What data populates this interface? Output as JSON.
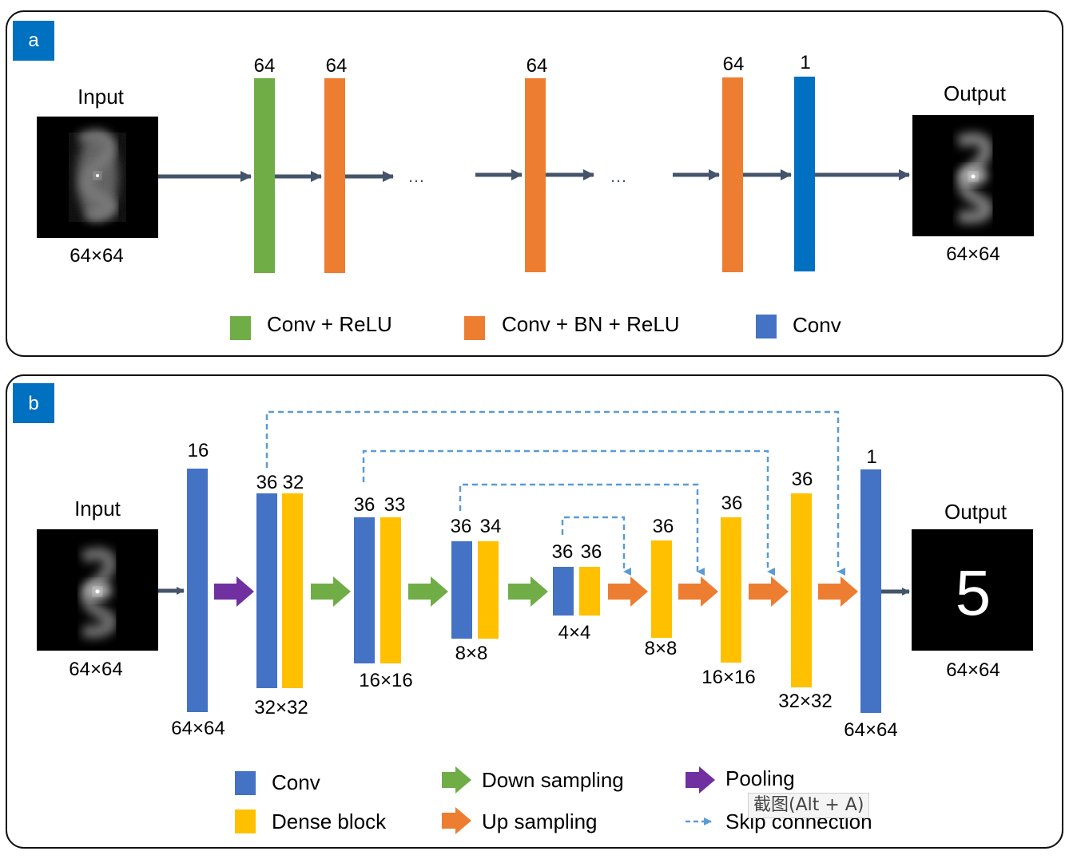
{
  "panel_a": {
    "badge": "a",
    "input_label": "Input",
    "input_size": "64×64",
    "output_label": "Output",
    "output_size": "64×64",
    "layers": [
      {
        "channels": "64",
        "kind": "conv_relu"
      },
      {
        "channels": "64",
        "kind": "conv_bn_relu"
      },
      {
        "channels": "64",
        "kind": "conv_bn_relu"
      },
      {
        "channels": "64",
        "kind": "conv_bn_relu"
      },
      {
        "channels": "1",
        "kind": "conv"
      }
    ],
    "ellipsis": "…",
    "legend": [
      {
        "label": "Conv + ReLU",
        "color": "#70AD47"
      },
      {
        "label": "Conv + BN + ReLU",
        "color": "#ED7D31"
      },
      {
        "label": "Conv",
        "color": "#4472C4"
      }
    ]
  },
  "panel_b": {
    "badge": "b",
    "input_label": "Input",
    "input_size": "64×64",
    "output_label": "Output",
    "output_size": "64×64",
    "output_digit": "5",
    "first_conv": {
      "channels": "16",
      "size": "64×64"
    },
    "encoder": [
      {
        "conv": "36",
        "dense": "32",
        "size": "32×32"
      },
      {
        "conv": "36",
        "dense": "33",
        "size": "16×16"
      },
      {
        "conv": "36",
        "dense": "34",
        "size": "8×8"
      },
      {
        "conv": "36",
        "dense": "36",
        "size": "4×4"
      }
    ],
    "decoder": [
      {
        "channels": "36",
        "size": "8×8"
      },
      {
        "channels": "36",
        "size": "16×16"
      },
      {
        "channels": "36",
        "size": "32×32"
      }
    ],
    "final_conv": {
      "channels": "1",
      "size": "64×64"
    },
    "legend": {
      "conv": "Conv",
      "dense": "Dense block",
      "down": "Down sampling",
      "up": "Up sampling",
      "pool": "Pooling",
      "skip": "Skip connection"
    }
  },
  "colors": {
    "green": "#70AD47",
    "orange": "#ED7D31",
    "blue_a": "#0070C0",
    "blue_b": "#4472C4",
    "yellow": "#FFC000",
    "purple": "#7030A0",
    "arrow": "#44546A",
    "skip": "#5B9BD5",
    "badge": "#0070C0"
  },
  "overlay": {
    "tooltip": "截图(Alt + A)"
  }
}
